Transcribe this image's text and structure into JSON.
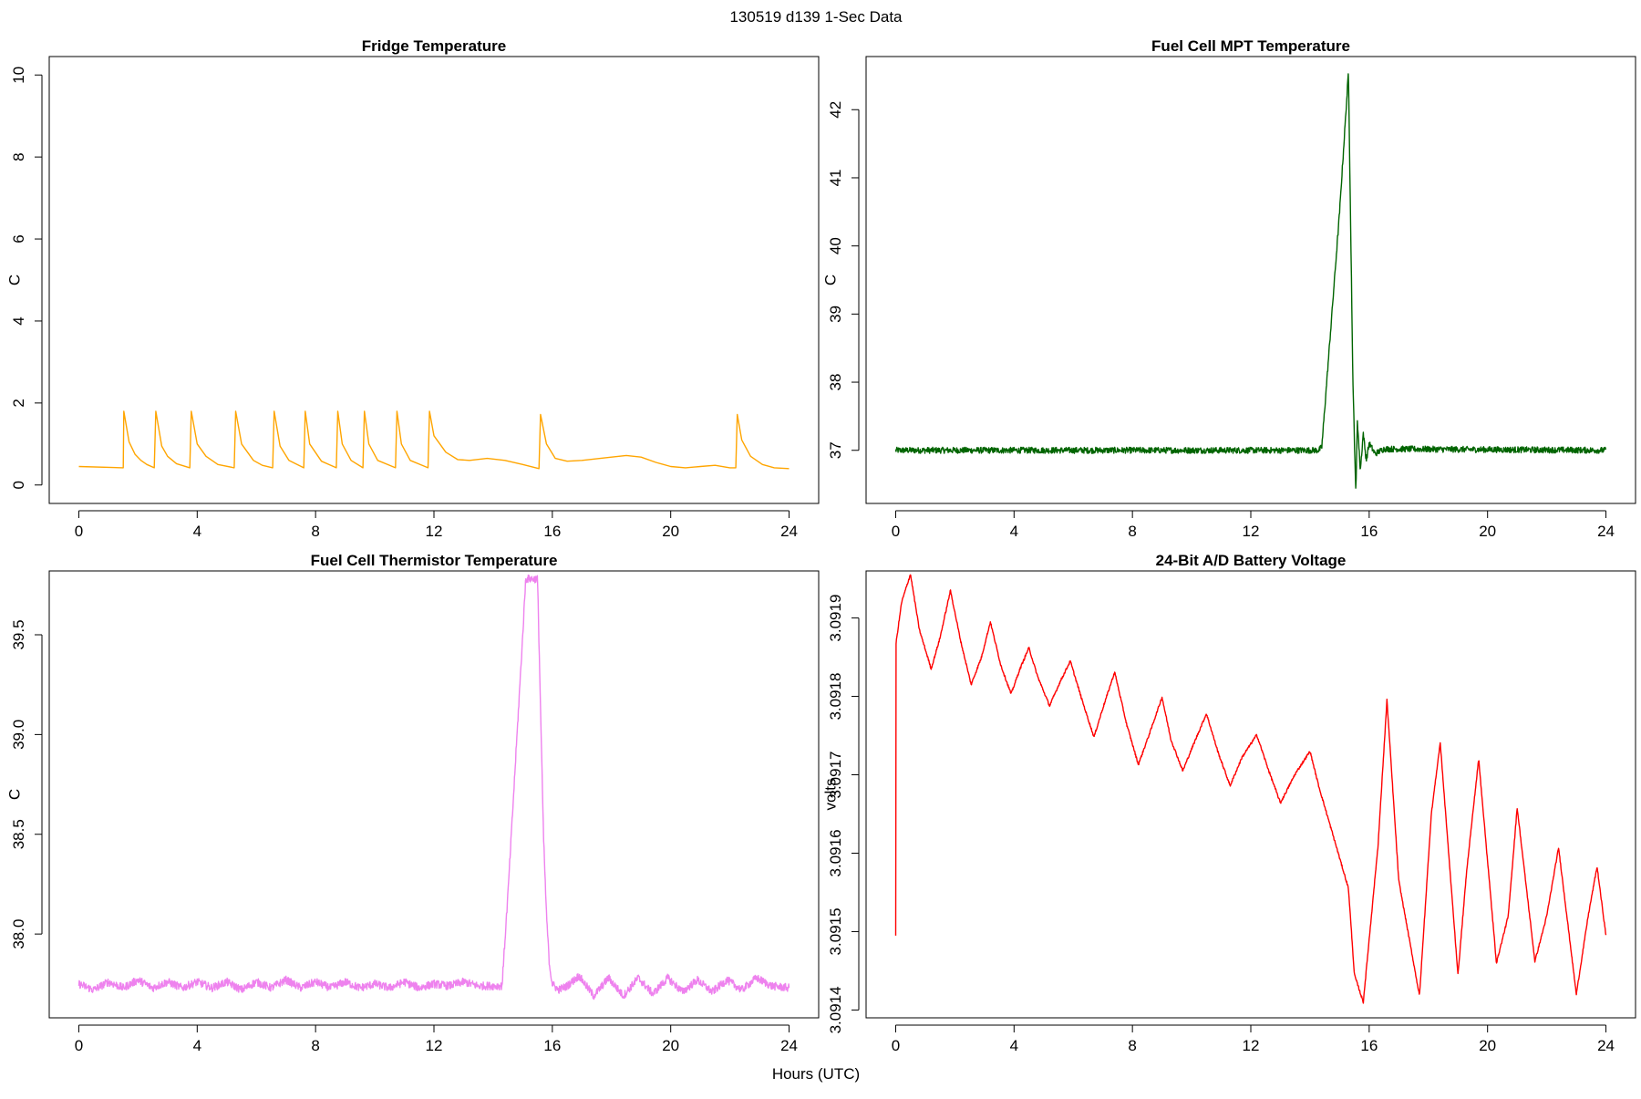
{
  "suptitle": "130519   d139   1-Sec Data",
  "xlabel": "Hours (UTC)",
  "chart_data": [
    {
      "type": "line",
      "title": "Fridge Temperature",
      "ylabel": "C",
      "xlim": [
        -1,
        25
      ],
      "ylim": [
        -0.45,
        10.45
      ],
      "xticks": [
        0,
        4,
        8,
        12,
        16,
        20,
        24
      ],
      "yticks": [
        0,
        2,
        4,
        6,
        8,
        10
      ],
      "ytick_labels": [
        "0",
        "2",
        "4",
        "6",
        "8",
        "10"
      ],
      "color": "#ffa500",
      "series": [
        {
          "name": "Fridge Temperature",
          "x": [
            0,
            1.5,
            1.52,
            1.7,
            1.9,
            2.1,
            2.3,
            2.55,
            2.6,
            2.8,
            3.0,
            3.3,
            3.75,
            3.8,
            4.0,
            4.3,
            4.7,
            5.25,
            5.3,
            5.5,
            5.9,
            6.2,
            6.55,
            6.6,
            6.8,
            7.1,
            7.6,
            7.65,
            7.8,
            8.2,
            8.7,
            8.75,
            8.9,
            9.2,
            9.6,
            9.65,
            9.8,
            10.1,
            10.7,
            10.75,
            10.9,
            11.2,
            11.8,
            11.85,
            12.0,
            12.4,
            12.8,
            13.2,
            13.8,
            14.4,
            15.0,
            15.55,
            15.6,
            15.8,
            16.1,
            16.5,
            17.0,
            18.0,
            18.5,
            19.0,
            19.5,
            20.0,
            20.5,
            21.0,
            21.5,
            22.0,
            22.2,
            22.25,
            22.4,
            22.7,
            23.1,
            23.5,
            24.0
          ],
          "y": [
            0.45,
            0.42,
            1.8,
            1.05,
            0.75,
            0.6,
            0.5,
            0.42,
            1.8,
            0.95,
            0.7,
            0.52,
            0.42,
            1.8,
            1.0,
            0.7,
            0.5,
            0.42,
            1.8,
            1.0,
            0.6,
            0.48,
            0.42,
            1.8,
            0.95,
            0.6,
            0.42,
            1.8,
            1.0,
            0.58,
            0.42,
            1.8,
            1.0,
            0.6,
            0.42,
            1.8,
            1.0,
            0.6,
            0.42,
            1.8,
            1.0,
            0.6,
            0.42,
            1.8,
            1.2,
            0.8,
            0.62,
            0.6,
            0.65,
            0.6,
            0.5,
            0.4,
            1.72,
            1.0,
            0.65,
            0.58,
            0.6,
            0.68,
            0.72,
            0.68,
            0.55,
            0.45,
            0.42,
            0.45,
            0.48,
            0.42,
            0.42,
            1.72,
            1.1,
            0.7,
            0.5,
            0.42,
            0.4
          ]
        }
      ]
    },
    {
      "type": "line",
      "title": "Fuel Cell MPT Temperature",
      "ylabel": "C",
      "xlim": [
        -1,
        25
      ],
      "ylim": [
        36.22,
        42.78
      ],
      "xticks": [
        0,
        4,
        8,
        12,
        16,
        20,
        24
      ],
      "yticks": [
        37,
        38,
        39,
        40,
        41,
        42
      ],
      "ytick_labels": [
        "37",
        "38",
        "39",
        "40",
        "41",
        "42"
      ],
      "color": "#006400",
      "series": [
        {
          "name": "Fuel Cell MPT Temperature",
          "x": [
            0,
            14.3,
            14.4,
            15.0,
            15.3,
            15.45,
            15.55,
            15.6,
            15.7,
            15.8,
            15.9,
            16.0,
            16.2,
            16.5,
            24.0
          ],
          "y": [
            37.0,
            37.0,
            37.05,
            40.5,
            42.55,
            38.0,
            36.35,
            37.45,
            36.7,
            37.25,
            36.85,
            37.1,
            36.95,
            37.02,
            37.0
          ],
          "noise": 0.045
        }
      ]
    },
    {
      "type": "line",
      "title": "Fuel Cell Thermistor Temperature",
      "ylabel": "C",
      "xlim": [
        -1,
        25
      ],
      "ylim": [
        37.58,
        39.82
      ],
      "xticks": [
        0,
        4,
        8,
        12,
        16,
        20,
        24
      ],
      "yticks": [
        38.0,
        38.5,
        39.0,
        39.5
      ],
      "ytick_labels": [
        "38.0",
        "38.5",
        "39.0",
        "39.5"
      ],
      "color": "#ee82ee",
      "series": [
        {
          "name": "Fuel Cell Thermistor Temperature",
          "x": [
            0,
            0.5,
            1.0,
            1.5,
            2.0,
            2.5,
            3.0,
            3.5,
            4.0,
            4.5,
            5.0,
            5.5,
            6.0,
            6.5,
            7.0,
            7.5,
            8.0,
            8.5,
            9.0,
            9.5,
            10.0,
            10.5,
            11.0,
            11.5,
            12.0,
            12.5,
            13.0,
            13.5,
            14.0,
            14.3,
            14.5,
            15.0,
            15.1,
            15.5,
            15.7,
            15.8,
            15.9,
            16.0,
            16.2,
            16.5,
            16.9,
            17.4,
            17.9,
            18.4,
            18.9,
            19.4,
            19.9,
            20.4,
            20.9,
            21.4,
            21.9,
            22.4,
            22.9,
            23.4,
            24.0
          ],
          "y": [
            37.75,
            37.72,
            37.76,
            37.73,
            37.77,
            37.73,
            37.76,
            37.73,
            37.76,
            37.73,
            37.76,
            37.72,
            37.76,
            37.73,
            37.77,
            37.73,
            37.76,
            37.73,
            37.76,
            37.73,
            37.75,
            37.73,
            37.76,
            37.73,
            37.75,
            37.74,
            37.76,
            37.74,
            37.74,
            37.74,
            38.2,
            39.5,
            39.78,
            39.78,
            38.5,
            38.1,
            37.85,
            37.75,
            37.72,
            37.74,
            37.79,
            37.69,
            37.78,
            37.69,
            37.78,
            37.7,
            37.78,
            37.71,
            37.77,
            37.71,
            37.77,
            37.72,
            37.78,
            37.74,
            37.73
          ],
          "noise": 0.02
        }
      ]
    },
    {
      "type": "line",
      "title": "24-Bit A/D Battery Voltage",
      "ylabel": "volts",
      "xlim": [
        -1,
        25
      ],
      "ylim": [
        3.09139,
        3.09196
      ],
      "xticks": [
        0,
        4,
        8,
        12,
        16,
        20,
        24
      ],
      "yticks": [
        3.0914,
        3.0915,
        3.0916,
        3.0917,
        3.0918,
        3.0919
      ],
      "ytick_labels": [
        "3.0914",
        "3.0915",
        "3.0916",
        "3.0917",
        "3.0918",
        "3.0919"
      ],
      "color": "#ff0000",
      "series": [
        {
          "name": "24-Bit A/D Battery Voltage",
          "x": [
            0,
            0.01,
            0.2,
            0.5,
            0.8,
            1.2,
            1.5,
            1.85,
            2.2,
            2.55,
            2.9,
            3.2,
            3.55,
            3.9,
            4.2,
            4.5,
            4.8,
            5.2,
            5.55,
            5.9,
            6.3,
            6.7,
            7.0,
            7.4,
            7.8,
            8.2,
            8.6,
            9.0,
            9.3,
            9.7,
            10.1,
            10.5,
            10.9,
            11.3,
            11.7,
            12.2,
            12.6,
            13.0,
            13.5,
            14.0,
            14.3,
            15.3,
            15.5,
            15.8,
            16.3,
            16.6,
            17.0,
            17.7,
            18.1,
            18.4,
            19.0,
            19.3,
            19.7,
            20.3,
            20.7,
            21.0,
            21.6,
            22.0,
            22.4,
            23.0,
            23.4,
            23.7,
            24.0
          ],
          "y": [
            3.091495,
            3.091867,
            3.09192,
            3.091956,
            3.091885,
            3.091835,
            3.091875,
            3.091935,
            3.09187,
            3.091815,
            3.09185,
            3.091895,
            3.09184,
            3.091803,
            3.091835,
            3.091862,
            3.091825,
            3.091788,
            3.091818,
            3.091845,
            3.091795,
            3.091748,
            3.091785,
            3.091831,
            3.091765,
            3.091713,
            3.091755,
            3.091799,
            3.091745,
            3.091705,
            3.091742,
            3.091778,
            3.091728,
            3.091686,
            3.091722,
            3.091751,
            3.091706,
            3.091664,
            3.091701,
            3.09173,
            3.091685,
            3.091555,
            3.091445,
            3.09141,
            3.09161,
            3.091795,
            3.091565,
            3.091418,
            3.09165,
            3.091741,
            3.091445,
            3.09158,
            3.09172,
            3.09146,
            3.09152,
            3.091658,
            3.091462,
            3.09152,
            3.091607,
            3.09142,
            3.09152,
            3.091583,
            3.091495
          ],
          "noise": 1.5e-06
        }
      ]
    }
  ]
}
